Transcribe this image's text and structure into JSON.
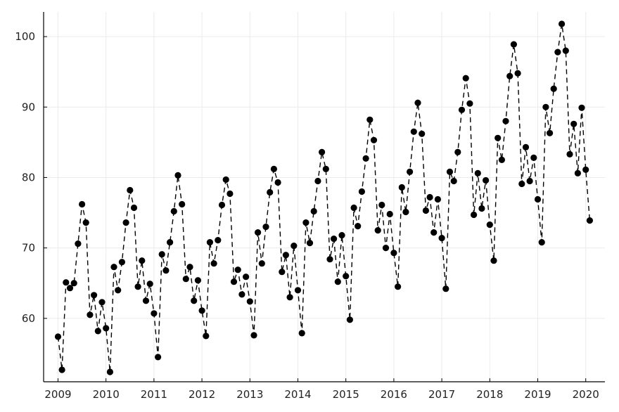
{
  "chart_data": {
    "type": "line",
    "title": "",
    "xlabel": "",
    "ylabel": "",
    "x_axis": "time (years)",
    "xlim": [
      2008.7,
      2020.4
    ],
    "ylim": [
      51.0,
      103.5
    ],
    "xticks": [
      2009,
      2010,
      2011,
      2012,
      2013,
      2014,
      2015,
      2016,
      2017,
      2018,
      2019,
      2020
    ],
    "yticks": [
      60,
      70,
      80,
      90,
      100
    ],
    "grid": true,
    "legend": "none",
    "style": {
      "line": "dashed",
      "marker": "filled circle",
      "color": "#000000",
      "grid_color": "#ebebeb"
    },
    "start": "2009-01",
    "frequency": "monthly",
    "series": [
      {
        "values": [
          57.4,
          52.7,
          65.1,
          64.3,
          65.0,
          70.6,
          76.2,
          73.6,
          60.5,
          63.3,
          58.2,
          62.3,
          58.6,
          52.4,
          67.3,
          64.0,
          68.0,
          73.6,
          78.2,
          75.7,
          64.5,
          68.2,
          62.5,
          64.9,
          60.7,
          54.5,
          69.1,
          66.8,
          70.8,
          75.2,
          80.3,
          76.2,
          65.6,
          67.3,
          62.5,
          65.4,
          61.1,
          57.5,
          70.8,
          67.8,
          71.1,
          76.1,
          79.7,
          77.7,
          65.2,
          66.9,
          63.4,
          65.9,
          62.4,
          57.6,
          72.2,
          67.8,
          73.0,
          77.9,
          81.2,
          79.3,
          66.6,
          69.0,
          63.0,
          70.3,
          64.0,
          57.9,
          73.6,
          70.7,
          75.2,
          79.5,
          83.6,
          81.2,
          68.4,
          71.3,
          65.2,
          71.8,
          66.0,
          59.8,
          75.7,
          73.1,
          78.0,
          82.7,
          88.2,
          85.3,
          72.5,
          76.1,
          70.0,
          74.8,
          69.3,
          64.5,
          78.6,
          75.1,
          80.8,
          86.5,
          90.6,
          86.2,
          75.3,
          77.2,
          72.2,
          76.9,
          71.4,
          64.2,
          80.8,
          79.5,
          83.6,
          89.6,
          94.1,
          90.5,
          74.7,
          80.6,
          75.6,
          79.6,
          73.3,
          68.2,
          85.6,
          82.5,
          88.0,
          94.4,
          98.9,
          94.8,
          79.1,
          84.3,
          79.5,
          82.8,
          76.9,
          70.8,
          90.0,
          86.3,
          92.6,
          97.8,
          101.8,
          98.0,
          83.3,
          87.6,
          80.6,
          89.9,
          81.1,
          73.9
        ]
      }
    ]
  }
}
